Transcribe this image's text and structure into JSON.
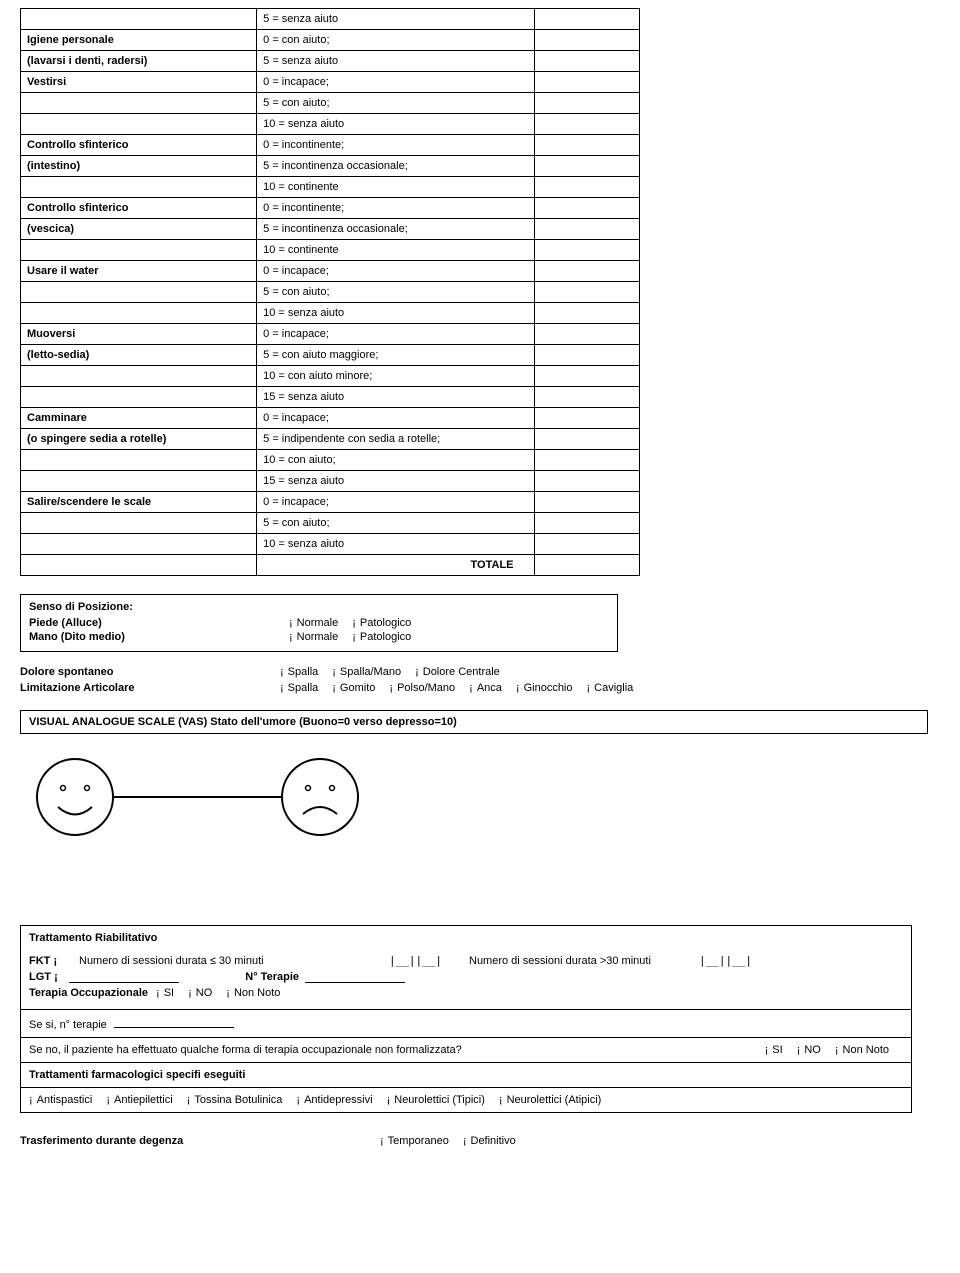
{
  "chkGlyph": "¡",
  "barthel": {
    "rows": [
      {
        "label": "",
        "desc": "5 = senza aiuto"
      },
      {
        "label": "Igiene personale",
        "desc": "0 = con aiuto;"
      },
      {
        "label": "(lavarsi i denti, radersi)",
        "desc": "5 = senza aiuto"
      },
      {
        "label": "Vestirsi",
        "desc": "0 = incapace;"
      },
      {
        "label": "",
        "desc": "5 = con aiuto;"
      },
      {
        "label": "",
        "desc": "10 = senza aiuto"
      },
      {
        "label": "Controllo sfinterico",
        "desc": "0 = incontinente;"
      },
      {
        "label": "(intestino)",
        "desc": "5 = incontinenza occasionale;"
      },
      {
        "label": "",
        "desc": "10 = continente"
      },
      {
        "label": "Controllo sfinterico",
        "desc": "0 = incontinente;"
      },
      {
        "label": "(vescica)",
        "desc": "5 = incontinenza occasionale;"
      },
      {
        "label": "",
        "desc": "10 = continente"
      },
      {
        "label": "Usare il water",
        "desc": "0 = incapace;"
      },
      {
        "label": "",
        "desc": "5 = con aiuto;"
      },
      {
        "label": "",
        "desc": "10 = senza aiuto"
      },
      {
        "label": "Muoversi",
        "desc": "0 = incapace;"
      },
      {
        "label": "(letto-sedia)",
        "desc": "5 = con aiuto maggiore;"
      },
      {
        "label": "",
        "desc": "10 = con aiuto minore;"
      },
      {
        "label": "",
        "desc": "15 = senza aiuto"
      },
      {
        "label": "Camminare",
        "desc": "0 = incapace;"
      },
      {
        "label": "(o spingere sedia a rotelle)",
        "desc": "5 = indipendente con sedia a rotelle;"
      },
      {
        "label": "",
        "desc": "10 = con aiuto;"
      },
      {
        "label": "",
        "desc": "15 = senza aiuto"
      },
      {
        "label": "Salire/scendere le scale",
        "desc": "0 = incapace;"
      },
      {
        "label": "",
        "desc": "5 = con aiuto;"
      },
      {
        "label": "",
        "desc": "10 = senza aiuto"
      }
    ],
    "totale": "TOTALE"
  },
  "senso": {
    "title": "Senso di Posizione:",
    "rows": [
      {
        "label": "Piede (Alluce)",
        "opts": [
          "Normale",
          "Patologico"
        ]
      },
      {
        "label": "Mano (Dito medio)",
        "opts": [
          "Normale",
          "Patologico"
        ]
      }
    ]
  },
  "dolore": {
    "label": "Dolore spontaneo",
    "opts": [
      "Spalla",
      "Spalla/Mano",
      "Dolore Centrale"
    ]
  },
  "limit": {
    "label": "Limitazione Articolare",
    "opts": [
      "Spalla",
      "Gomito",
      "Polso/Mano",
      "Anca",
      "Ginocchio",
      "Caviglia"
    ]
  },
  "vas": "VISUAL ANALOGUE SCALE (VAS) Stato dell'umore (Buono=0 verso depresso=10)",
  "treat": {
    "title": "Trattamento Riabilitativo",
    "fkt": "FKT",
    "s30": "Numero di sessioni durata ≤ 30 minuti",
    "s30p": "Numero di sessioni durata >30 minuti",
    "boxes": "|__||__|",
    "lgt": "LGT",
    "nterapie": "N° Terapie",
    "occ": "Terapia Occupazionale",
    "si": "SI",
    "no": "NO",
    "nn": "Non Noto",
    "sesi": "Se si, n° terapie",
    "seno": "Se no, il paziente ha effettuato qualche forma di terapia occupazionale non formalizzata?",
    "farm": "Trattamenti farmacologici specifi eseguiti",
    "drugs": [
      "Antispastici",
      "Antiepilettici",
      "Tossina Botulinica",
      "Antidepressivi",
      "Neurolettici (Tipici)",
      "Neurolettici (Atipici)"
    ]
  },
  "trasf": {
    "label": "Trasferimento durante degenza",
    "opts": [
      "Temporaneo",
      "Definitivo"
    ]
  }
}
